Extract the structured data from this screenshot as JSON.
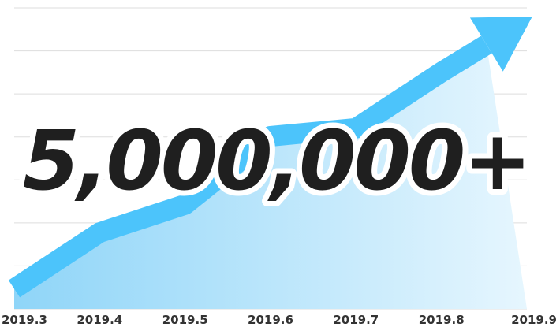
{
  "headline": "5,000,000+",
  "chart_data": {
    "type": "area",
    "categories": [
      "2019.3",
      "2019.4",
      "2019.5",
      "2019.6",
      "2019.7",
      "2019.8",
      "2019.9"
    ],
    "values": [
      0.5,
      1.9,
      2.6,
      4.3,
      4.5,
      5.9,
      7.2
    ],
    "ylim": [
      0,
      7.5
    ],
    "grid": true,
    "legend": "none",
    "colors": {
      "line": "#4cc4fb",
      "area_top": "#8fd5f8",
      "area_bottom": "#e6f6fe",
      "grid": "#dddddd",
      "headline": "#1f1f1f",
      "headline_outline": "#ffffff"
    }
  }
}
